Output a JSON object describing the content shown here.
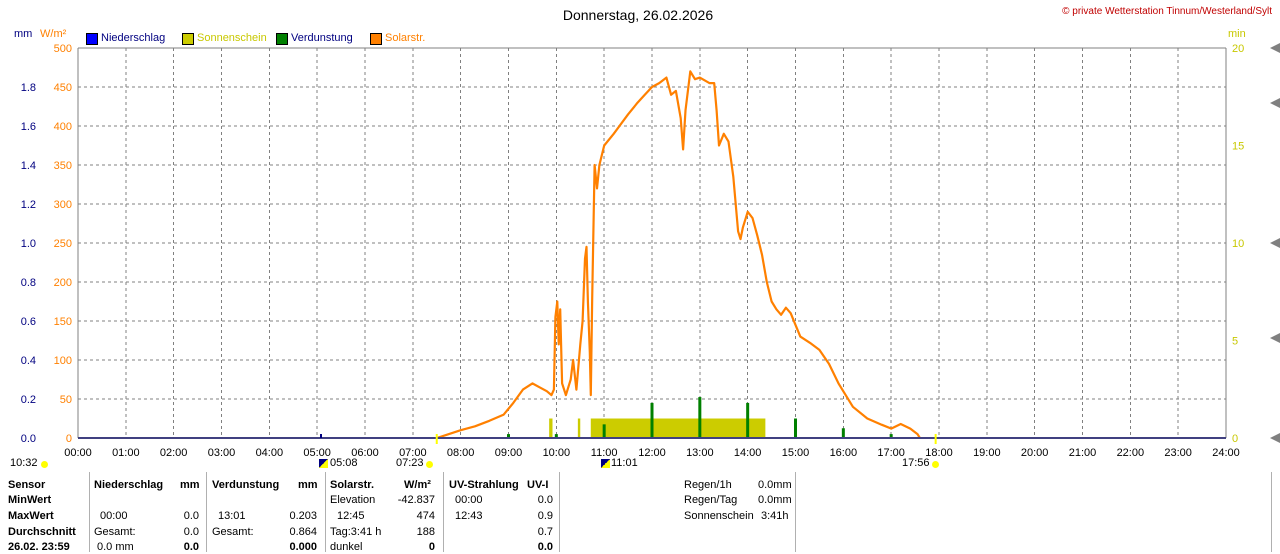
{
  "header": {
    "title": "Donnerstag, 26.02.2026",
    "copyright_symbol": "©",
    "copyright": "private Wetterstation Tinnum/Westerland/Sylt"
  },
  "units": {
    "left_mm": "mm",
    "left_wm2": "W/m²",
    "right_min": "min"
  },
  "legend": [
    {
      "label": "Niederschlag",
      "swatch": "#0000ff",
      "text_color": "#000080"
    },
    {
      "label": "Sonnenschein",
      "swatch": "#cccc00",
      "text_color": "#c8c800"
    },
    {
      "label": "Verdunstung",
      "swatch": "#008000",
      "text_color": "#000080"
    },
    {
      "label": "Solarstr.",
      "swatch": "#ff8000",
      "text_color": "#ff8000"
    }
  ],
  "colors": {
    "solar": "#ff8000",
    "sunshine": "#cccc00",
    "evaporation": "#008000",
    "grid": "#808080",
    "precip": "#0000ff"
  },
  "chart_data": {
    "type": "line",
    "title": "Donnerstag, 26.02.2026",
    "x_unit": "hour",
    "xlim": [
      0,
      24
    ],
    "x_ticks": [
      "00:00",
      "01:00",
      "02:00",
      "03:00",
      "04:00",
      "05:00",
      "06:00",
      "07:00",
      "08:00",
      "09:00",
      "10:00",
      "11:00",
      "12:00",
      "13:00",
      "14:00",
      "15:00",
      "16:00",
      "17:00",
      "18:00",
      "19:00",
      "20:00",
      "21:00",
      "22:00",
      "23:00",
      "24:00"
    ],
    "y_left_wm2": {
      "label": "W/m²",
      "range": [
        0,
        500
      ],
      "ticks": [
        "0",
        "50",
        "100",
        "150",
        "200",
        "250",
        "300",
        "350",
        "400",
        "450",
        "500"
      ]
    },
    "y_left_mm": {
      "label": "mm",
      "range": [
        0,
        2.0
      ],
      "ticks": [
        "0.0",
        "0.2",
        "0.4",
        "0.6",
        "0.8",
        "1.0",
        "1.2",
        "1.4",
        "1.6",
        "1.8"
      ]
    },
    "y_right_min": {
      "label": "min",
      "range": [
        0,
        20
      ],
      "ticks": [
        "0",
        "5",
        "10",
        "15",
        "20"
      ]
    },
    "grid": true,
    "legend_position": "top-left",
    "series": [
      {
        "name": "Solarstr.",
        "type": "line",
        "axis": "W/m²",
        "points": [
          [
            7.5,
            0
          ],
          [
            7.7,
            4
          ],
          [
            8.0,
            10
          ],
          [
            8.3,
            15
          ],
          [
            8.6,
            22
          ],
          [
            8.9,
            30
          ],
          [
            9.1,
            45
          ],
          [
            9.3,
            62
          ],
          [
            9.5,
            70
          ],
          [
            9.65,
            65
          ],
          [
            9.8,
            60
          ],
          [
            9.9,
            55
          ],
          [
            9.95,
            62
          ],
          [
            9.98,
            155
          ],
          [
            10.02,
            175
          ],
          [
            10.05,
            120
          ],
          [
            10.08,
            165
          ],
          [
            10.12,
            70
          ],
          [
            10.2,
            55
          ],
          [
            10.3,
            75
          ],
          [
            10.35,
            100
          ],
          [
            10.42,
            62
          ],
          [
            10.5,
            120
          ],
          [
            10.55,
            150
          ],
          [
            10.6,
            230
          ],
          [
            10.63,
            245
          ],
          [
            10.66,
            175
          ],
          [
            10.7,
            110
          ],
          [
            10.72,
            55
          ],
          [
            10.75,
            180
          ],
          [
            10.8,
            350
          ],
          [
            10.85,
            320
          ],
          [
            10.9,
            350
          ],
          [
            11.0,
            375
          ],
          [
            11.2,
            390
          ],
          [
            11.5,
            415
          ],
          [
            11.7,
            430
          ],
          [
            11.85,
            440
          ],
          [
            12.0,
            450
          ],
          [
            12.15,
            455
          ],
          [
            12.3,
            462
          ],
          [
            12.4,
            440
          ],
          [
            12.5,
            445
          ],
          [
            12.6,
            410
          ],
          [
            12.65,
            370
          ],
          [
            12.7,
            420
          ],
          [
            12.8,
            470
          ],
          [
            12.9,
            460
          ],
          [
            13.0,
            462
          ],
          [
            13.2,
            455
          ],
          [
            13.3,
            455
          ],
          [
            13.35,
            420
          ],
          [
            13.4,
            375
          ],
          [
            13.5,
            390
          ],
          [
            13.6,
            380
          ],
          [
            13.7,
            335
          ],
          [
            13.8,
            265
          ],
          [
            13.85,
            255
          ],
          [
            13.9,
            270
          ],
          [
            14.0,
            290
          ],
          [
            14.1,
            282
          ],
          [
            14.2,
            260
          ],
          [
            14.3,
            235
          ],
          [
            14.4,
            200
          ],
          [
            14.5,
            175
          ],
          [
            14.6,
            165
          ],
          [
            14.7,
            158
          ],
          [
            14.8,
            167
          ],
          [
            14.9,
            160
          ],
          [
            15.0,
            145
          ],
          [
            15.1,
            130
          ],
          [
            15.3,
            122
          ],
          [
            15.5,
            113
          ],
          [
            15.7,
            95
          ],
          [
            15.9,
            70
          ],
          [
            16.2,
            40
          ],
          [
            16.5,
            25
          ],
          [
            16.8,
            17
          ],
          [
            17.0,
            12
          ],
          [
            17.2,
            18
          ],
          [
            17.4,
            12
          ],
          [
            17.55,
            5
          ],
          [
            17.6,
            0
          ]
        ]
      },
      {
        "name": "Sonnenschein",
        "type": "bar",
        "axis": "min",
        "segments": [
          [
            9.85,
            9.92,
            1.0
          ],
          [
            10.45,
            10.5,
            1.0
          ],
          [
            10.72,
            14.37,
            1.0
          ]
        ]
      },
      {
        "name": "Verdunstung",
        "type": "bar",
        "axis": "mm",
        "bars": [
          [
            9.0,
            0.02
          ],
          [
            10.0,
            0.02
          ],
          [
            11.0,
            0.07
          ],
          [
            12.0,
            0.18
          ],
          [
            13.0,
            0.21
          ],
          [
            14.0,
            0.18
          ],
          [
            15.0,
            0.1
          ],
          [
            16.0,
            0.05
          ],
          [
            17.0,
            0.02
          ]
        ]
      },
      {
        "name": "Niederschlag",
        "type": "bar",
        "axis": "mm",
        "bars": []
      }
    ]
  },
  "markers": {
    "start_time": "10:32",
    "sunrise": "05:08",
    "dawn_start": "07:23",
    "solar_noon": "11:01",
    "sunset": "17:56"
  },
  "table": {
    "row_labels": [
      "Sensor",
      "MinWert",
      "MaxWert",
      "Durchschnitt",
      "26.02. 23:59"
    ],
    "precip": {
      "header": "Niederschlag",
      "unit": "mm",
      "max_time": "00:00",
      "max_val": "0.0",
      "avg_label": "Gesamt:",
      "avg_val": "0.0",
      "now_val": "0.0 mm",
      "now_total": "0.0"
    },
    "evap": {
      "header": "Verdunstung",
      "unit": "mm",
      "max_time": "13:01",
      "max_val": "0.203",
      "avg_label": "Gesamt:",
      "avg_val": "0.864",
      "now_total": "0.000"
    },
    "solar": {
      "header": "Solarstr.",
      "unit": "W/m²",
      "min_label": "Elevation",
      "min_val": "-42.837",
      "max_time": "12:45",
      "max_val": "474",
      "avg_label": "Tag:3:41 h",
      "avg_val": "188",
      "now_label": "dunkel",
      "now_val": "0"
    },
    "uv": {
      "header": "UV-Strahlung",
      "unit": "UV-I",
      "min_time": "00:00",
      "min_val": "0.0",
      "max_time": "12:43",
      "max_val": "0.9",
      "avg_val": "0.7",
      "now_val": "0.0"
    },
    "summary": [
      {
        "label": "Regen/1h",
        "value": "0.0mm"
      },
      {
        "label": "Regen/Tag",
        "value": "0.0mm"
      },
      {
        "label": "Sonnenschein",
        "value": "3:41h"
      }
    ]
  }
}
